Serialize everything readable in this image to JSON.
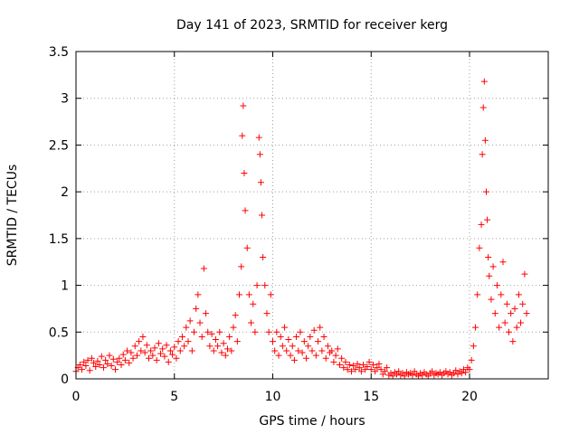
{
  "chart_data": {
    "type": "scatter",
    "title": "Day 141 of 2023, SRMTID for receiver kerg",
    "xlabel": "GPS time / hours",
    "ylabel": "SRMTID / TECUs",
    "xlim": [
      0,
      24
    ],
    "ylim": [
      0,
      3.5
    ],
    "xticks": [
      0,
      5,
      10,
      15,
      20
    ],
    "yticks": [
      0,
      0.5,
      1,
      1.5,
      2,
      2.5,
      3,
      3.5
    ],
    "xtick_labels": [
      "0",
      "5",
      "10",
      "15",
      "20"
    ],
    "ytick_labels": [
      "0",
      "0.5",
      "1",
      "1.5",
      "2",
      "2.5",
      "3",
      "3.5"
    ],
    "grid": true,
    "marker": "+",
    "color": "#ff0000",
    "series": [
      {
        "name": "SRMTID",
        "points": [
          [
            0.0,
            0.08
          ],
          [
            0.1,
            0.12
          ],
          [
            0.2,
            0.15
          ],
          [
            0.3,
            0.1
          ],
          [
            0.4,
            0.18
          ],
          [
            0.5,
            0.14
          ],
          [
            0.6,
            0.2
          ],
          [
            0.7,
            0.09
          ],
          [
            0.8,
            0.22
          ],
          [
            0.9,
            0.17
          ],
          [
            1.0,
            0.13
          ],
          [
            1.1,
            0.19
          ],
          [
            1.2,
            0.15
          ],
          [
            1.3,
            0.24
          ],
          [
            1.4,
            0.12
          ],
          [
            1.5,
            0.2
          ],
          [
            1.6,
            0.16
          ],
          [
            1.7,
            0.25
          ],
          [
            1.8,
            0.14
          ],
          [
            1.9,
            0.21
          ],
          [
            2.0,
            0.1
          ],
          [
            2.1,
            0.18
          ],
          [
            2.2,
            0.22
          ],
          [
            2.3,
            0.15
          ],
          [
            2.4,
            0.26
          ],
          [
            2.5,
            0.2
          ],
          [
            2.6,
            0.3
          ],
          [
            2.7,
            0.17
          ],
          [
            2.8,
            0.28
          ],
          [
            2.9,
            0.22
          ],
          [
            3.0,
            0.35
          ],
          [
            3.1,
            0.25
          ],
          [
            3.2,
            0.4
          ],
          [
            3.3,
            0.3
          ],
          [
            3.4,
            0.45
          ],
          [
            3.5,
            0.28
          ],
          [
            3.6,
            0.36
          ],
          [
            3.7,
            0.22
          ],
          [
            3.8,
            0.3
          ],
          [
            3.9,
            0.25
          ],
          [
            4.0,
            0.33
          ],
          [
            4.1,
            0.2
          ],
          [
            4.2,
            0.38
          ],
          [
            4.3,
            0.27
          ],
          [
            4.4,
            0.32
          ],
          [
            4.5,
            0.24
          ],
          [
            4.6,
            0.36
          ],
          [
            4.7,
            0.18
          ],
          [
            4.8,
            0.3
          ],
          [
            4.9,
            0.26
          ],
          [
            5.0,
            0.34
          ],
          [
            5.1,
            0.22
          ],
          [
            5.2,
            0.4
          ],
          [
            5.3,
            0.3
          ],
          [
            5.4,
            0.45
          ],
          [
            5.5,
            0.35
          ],
          [
            5.6,
            0.55
          ],
          [
            5.7,
            0.4
          ],
          [
            5.8,
            0.62
          ],
          [
            5.9,
            0.3
          ],
          [
            6.0,
            0.5
          ],
          [
            6.1,
            0.75
          ],
          [
            6.2,
            0.9
          ],
          [
            6.3,
            0.6
          ],
          [
            6.4,
            0.45
          ],
          [
            6.5,
            1.18
          ],
          [
            6.6,
            0.7
          ],
          [
            6.7,
            0.5
          ],
          [
            6.8,
            0.35
          ],
          [
            6.9,
            0.48
          ],
          [
            7.0,
            0.3
          ],
          [
            7.1,
            0.42
          ],
          [
            7.2,
            0.35
          ],
          [
            7.3,
            0.5
          ],
          [
            7.4,
            0.28
          ],
          [
            7.5,
            0.38
          ],
          [
            7.6,
            0.25
          ],
          [
            7.7,
            0.32
          ],
          [
            7.8,
            0.45
          ],
          [
            7.9,
            0.3
          ],
          [
            8.0,
            0.55
          ],
          [
            8.1,
            0.68
          ],
          [
            8.2,
            0.4
          ],
          [
            8.3,
            0.9
          ],
          [
            8.4,
            1.2
          ],
          [
            8.45,
            2.6
          ],
          [
            8.5,
            2.92
          ],
          [
            8.55,
            2.2
          ],
          [
            8.6,
            1.8
          ],
          [
            8.7,
            1.4
          ],
          [
            8.8,
            0.9
          ],
          [
            8.9,
            0.6
          ],
          [
            9.0,
            0.8
          ],
          [
            9.1,
            0.5
          ],
          [
            9.2,
            1.0
          ],
          [
            9.3,
            2.58
          ],
          [
            9.35,
            2.4
          ],
          [
            9.4,
            2.1
          ],
          [
            9.45,
            1.75
          ],
          [
            9.5,
            1.3
          ],
          [
            9.6,
            1.0
          ],
          [
            9.7,
            0.7
          ],
          [
            9.8,
            0.5
          ],
          [
            9.9,
            0.9
          ],
          [
            10.0,
            0.4
          ],
          [
            10.1,
            0.3
          ],
          [
            10.2,
            0.5
          ],
          [
            10.3,
            0.25
          ],
          [
            10.4,
            0.45
          ],
          [
            10.5,
            0.35
          ],
          [
            10.6,
            0.55
          ],
          [
            10.7,
            0.3
          ],
          [
            10.8,
            0.42
          ],
          [
            10.9,
            0.25
          ],
          [
            11.0,
            0.35
          ],
          [
            11.1,
            0.2
          ],
          [
            11.2,
            0.45
          ],
          [
            11.3,
            0.3
          ],
          [
            11.4,
            0.5
          ],
          [
            11.5,
            0.28
          ],
          [
            11.6,
            0.4
          ],
          [
            11.7,
            0.22
          ],
          [
            11.8,
            0.35
          ],
          [
            11.9,
            0.45
          ],
          [
            12.0,
            0.3
          ],
          [
            12.1,
            0.52
          ],
          [
            12.2,
            0.25
          ],
          [
            12.3,
            0.4
          ],
          [
            12.4,
            0.55
          ],
          [
            12.5,
            0.3
          ],
          [
            12.6,
            0.45
          ],
          [
            12.7,
            0.22
          ],
          [
            12.8,
            0.35
          ],
          [
            12.9,
            0.28
          ],
          [
            13.0,
            0.3
          ],
          [
            13.1,
            0.18
          ],
          [
            13.2,
            0.25
          ],
          [
            13.3,
            0.32
          ],
          [
            13.4,
            0.15
          ],
          [
            13.5,
            0.22
          ],
          [
            13.6,
            0.12
          ],
          [
            13.7,
            0.18
          ],
          [
            13.8,
            0.1
          ],
          [
            13.9,
            0.15
          ],
          [
            14.0,
            0.08
          ],
          [
            14.1,
            0.14
          ],
          [
            14.2,
            0.1
          ],
          [
            14.3,
            0.16
          ],
          [
            14.4,
            0.12
          ],
          [
            14.5,
            0.08
          ],
          [
            14.6,
            0.15
          ],
          [
            14.7,
            0.1
          ],
          [
            14.8,
            0.13
          ],
          [
            14.9,
            0.18
          ],
          [
            15.0,
            0.1
          ],
          [
            15.1,
            0.15
          ],
          [
            15.2,
            0.08
          ],
          [
            15.3,
            0.12
          ],
          [
            15.4,
            0.16
          ],
          [
            15.5,
            0.1
          ],
          [
            15.6,
            0.05
          ],
          [
            15.7,
            0.08
          ],
          [
            15.8,
            0.12
          ],
          [
            15.9,
            0.04
          ],
          [
            16.0,
            0.06
          ],
          [
            16.1,
            0.03
          ],
          [
            16.2,
            0.07
          ],
          [
            16.3,
            0.05
          ],
          [
            16.4,
            0.08
          ],
          [
            16.5,
            0.04
          ],
          [
            16.6,
            0.06
          ],
          [
            16.7,
            0.03
          ],
          [
            16.8,
            0.07
          ],
          [
            16.9,
            0.05
          ],
          [
            17.0,
            0.06
          ],
          [
            17.1,
            0.04
          ],
          [
            17.2,
            0.08
          ],
          [
            17.3,
            0.05
          ],
          [
            17.4,
            0.03
          ],
          [
            17.5,
            0.06
          ],
          [
            17.6,
            0.04
          ],
          [
            17.7,
            0.07
          ],
          [
            17.8,
            0.05
          ],
          [
            17.9,
            0.03
          ],
          [
            18.0,
            0.06
          ],
          [
            18.1,
            0.08
          ],
          [
            18.2,
            0.04
          ],
          [
            18.3,
            0.06
          ],
          [
            18.4,
            0.05
          ],
          [
            18.5,
            0.07
          ],
          [
            18.6,
            0.04
          ],
          [
            18.7,
            0.06
          ],
          [
            18.8,
            0.08
          ],
          [
            18.9,
            0.05
          ],
          [
            19.0,
            0.07
          ],
          [
            19.1,
            0.04
          ],
          [
            19.2,
            0.06
          ],
          [
            19.3,
            0.09
          ],
          [
            19.4,
            0.05
          ],
          [
            19.5,
            0.08
          ],
          [
            19.6,
            0.06
          ],
          [
            19.7,
            0.1
          ],
          [
            19.8,
            0.07
          ],
          [
            19.9,
            0.12
          ],
          [
            20.0,
            0.1
          ],
          [
            20.1,
            0.2
          ],
          [
            20.2,
            0.35
          ],
          [
            20.3,
            0.55
          ],
          [
            20.4,
            0.9
          ],
          [
            20.5,
            1.4
          ],
          [
            20.6,
            1.65
          ],
          [
            20.65,
            2.4
          ],
          [
            20.7,
            2.9
          ],
          [
            20.75,
            3.18
          ],
          [
            20.8,
            2.55
          ],
          [
            20.85,
            2.0
          ],
          [
            20.9,
            1.7
          ],
          [
            20.95,
            1.3
          ],
          [
            21.0,
            1.1
          ],
          [
            21.1,
            0.85
          ],
          [
            21.2,
            1.2
          ],
          [
            21.3,
            0.7
          ],
          [
            21.4,
            1.0
          ],
          [
            21.5,
            0.55
          ],
          [
            21.6,
            0.9
          ],
          [
            21.7,
            1.25
          ],
          [
            21.8,
            0.6
          ],
          [
            21.9,
            0.8
          ],
          [
            22.0,
            0.5
          ],
          [
            22.1,
            0.7
          ],
          [
            22.2,
            0.4
          ],
          [
            22.3,
            0.75
          ],
          [
            22.4,
            0.55
          ],
          [
            22.5,
            0.9
          ],
          [
            22.6,
            0.6
          ],
          [
            22.7,
            0.8
          ],
          [
            22.8,
            1.12
          ],
          [
            22.9,
            0.7
          ]
        ]
      }
    ]
  }
}
